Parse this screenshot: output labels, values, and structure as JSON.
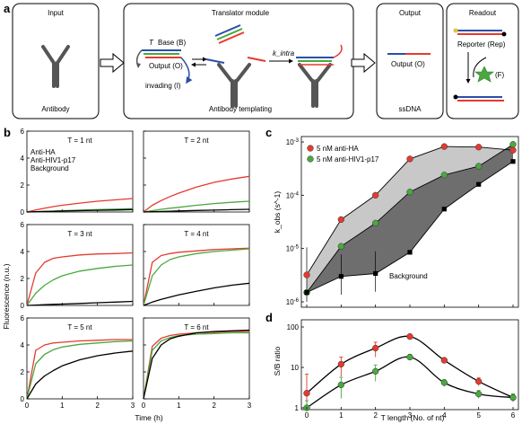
{
  "panel_labels": {
    "a": "a",
    "b": "b",
    "c": "c",
    "d": "d"
  },
  "schematic": {
    "input_title": "Input",
    "input_caption": "Antibody",
    "translator_title": "Translator module",
    "translator_caption": "Antibody templating",
    "toehold_label": "T",
    "base_label": "Base (B)",
    "output_strand_label": "Output (O)",
    "invading_label": "invading (I)",
    "kintra_label": "k_intra",
    "output_title": "Output",
    "output_strand": "Output (O)",
    "output_caption": "ssDNA",
    "readout_title": "Readout",
    "reporter_label": "Reporter (Rep)",
    "fluor_label": "(F)"
  },
  "colors": {
    "anti_ha": "#e53a2f",
    "anti_hiv": "#4aa83f",
    "background": "#000000",
    "shade_light": "#c8c8c8",
    "shade_dark": "#6e6e6e"
  },
  "chart_data": [
    {
      "type": "line",
      "panel": "b",
      "ylabel": "Fluorescence (n.u.)",
      "xlabel": "Time (h)",
      "xlim": [
        0,
        3
      ],
      "ylim": [
        0,
        6
      ],
      "x_ticks": [
        "0",
        "1",
        "2",
        "3"
      ],
      "y_ticks": [
        "0",
        "2",
        "4",
        "6"
      ],
      "legend": [
        "Anti-HA",
        "Anti-HIV1-p17",
        "Background"
      ],
      "x": [
        0,
        0.25,
        0.5,
        0.75,
        1,
        1.5,
        2,
        2.5,
        3
      ],
      "subplots": [
        {
          "title": "T = 1 nt",
          "series": [
            {
              "name": "Anti-HA",
              "values": [
                0,
                0.15,
                0.28,
                0.4,
                0.5,
                0.66,
                0.8,
                0.9,
                1.0
              ]
            },
            {
              "name": "Anti-HIV1-p17",
              "values": [
                0,
                0.03,
                0.05,
                0.07,
                0.1,
                0.14,
                0.18,
                0.21,
                0.25
              ]
            },
            {
              "name": "Background",
              "values": [
                0,
                0.02,
                0.04,
                0.05,
                0.07,
                0.1,
                0.13,
                0.15,
                0.18
              ]
            }
          ]
        },
        {
          "title": "T = 2 nt",
          "series": [
            {
              "name": "Anti-HA",
              "values": [
                0,
                0.5,
                0.85,
                1.15,
                1.4,
                1.85,
                2.2,
                2.45,
                2.65
              ]
            },
            {
              "name": "Anti-HIV1-p17",
              "values": [
                0,
                0.1,
                0.2,
                0.28,
                0.35,
                0.5,
                0.63,
                0.72,
                0.8
              ]
            },
            {
              "name": "Background",
              "values": [
                0,
                0.02,
                0.04,
                0.06,
                0.08,
                0.11,
                0.14,
                0.17,
                0.2
              ]
            }
          ]
        },
        {
          "title": "T = 3 nt",
          "series": [
            {
              "name": "Anti-HA",
              "values": [
                0,
                2.4,
                3.2,
                3.5,
                3.6,
                3.75,
                3.82,
                3.85,
                3.9
              ]
            },
            {
              "name": "Anti-HIV1-p17",
              "values": [
                0,
                0.9,
                1.5,
                1.9,
                2.2,
                2.55,
                2.75,
                2.9,
                3.0
              ]
            },
            {
              "name": "Background",
              "values": [
                0,
                0.03,
                0.06,
                0.08,
                0.1,
                0.15,
                0.2,
                0.25,
                0.3
              ]
            }
          ]
        },
        {
          "title": "T = 4 nt",
          "series": [
            {
              "name": "Anti-HA",
              "values": [
                0,
                3.2,
                3.7,
                3.85,
                3.95,
                4.05,
                4.15,
                4.2,
                4.25
              ]
            },
            {
              "name": "Anti-HIV1-p17",
              "values": [
                0,
                2.2,
                3.0,
                3.4,
                3.6,
                3.85,
                4.0,
                4.1,
                4.2
              ]
            },
            {
              "name": "Background",
              "values": [
                0,
                0.25,
                0.45,
                0.62,
                0.78,
                1.05,
                1.3,
                1.5,
                1.65
              ]
            }
          ]
        },
        {
          "title": "T = 5 nt",
          "series": [
            {
              "name": "Anti-HA",
              "values": [
                0,
                3.6,
                4.0,
                4.15,
                4.2,
                4.3,
                4.35,
                4.4,
                4.4
              ]
            },
            {
              "name": "Anti-HIV1-p17",
              "values": [
                0,
                2.6,
                3.3,
                3.65,
                3.85,
                4.05,
                4.15,
                4.25,
                4.3
              ]
            },
            {
              "name": "Background",
              "values": [
                0,
                1.1,
                1.7,
                2.1,
                2.45,
                2.9,
                3.2,
                3.4,
                3.55
              ]
            }
          ]
        },
        {
          "title": "T = 6 nt",
          "series": [
            {
              "name": "Anti-HA",
              "values": [
                0,
                3.9,
                4.5,
                4.7,
                4.8,
                4.9,
                4.95,
                5.0,
                5.0
              ]
            },
            {
              "name": "Anti-HIV1-p17",
              "values": [
                0,
                3.6,
                4.3,
                4.55,
                4.7,
                4.8,
                4.85,
                4.9,
                4.9
              ]
            },
            {
              "name": "Background",
              "values": [
                0,
                3.0,
                4.0,
                4.45,
                4.65,
                4.9,
                5.0,
                5.05,
                5.1
              ]
            }
          ]
        }
      ]
    },
    {
      "type": "scatter",
      "panel": "c",
      "ylabel": "k_obs (s^-1)",
      "yscale": "log",
      "ylim": [
        1e-06,
        0.001
      ],
      "xlim": [
        0,
        6
      ],
      "y_ticks": [
        "10^-6",
        "10^-5",
        "10^-4",
        "10^-3"
      ],
      "legend": [
        "5 nM anti-HA",
        "5 nM anti-HIV1-p17"
      ],
      "annotation": "Background",
      "x": [
        0,
        1,
        2,
        3,
        4,
        5,
        6
      ],
      "series": [
        {
          "name": "5 nM anti-HA",
          "values": [
            3.2e-06,
            3.5e-05,
            0.0001,
            0.00048,
            0.00082,
            0.0008,
            0.0007
          ]
        },
        {
          "name": "5 nM anti-HIV1-p17",
          "values": [
            1.5e-06,
            1.1e-05,
            3e-05,
            0.000115,
            0.00024,
            0.00035,
            0.0009
          ]
        },
        {
          "name": "Background",
          "values": [
            1.5e-06,
            3e-06,
            3.4e-06,
            8.5e-06,
            5.5e-05,
            0.00016,
            0.00043
          ]
        }
      ]
    },
    {
      "type": "scatter",
      "panel": "d",
      "ylabel": "S/B ratio",
      "xlabel": "T length (No. of nt)",
      "yscale": "log",
      "ylim": [
        1,
        100
      ],
      "xlim": [
        0,
        6
      ],
      "x_ticks": [
        "0",
        "1",
        "2",
        "3",
        "4",
        "5",
        "6"
      ],
      "y_ticks": [
        "1",
        "10",
        "100"
      ],
      "x": [
        0,
        1,
        2,
        3,
        4,
        5,
        6
      ],
      "series": [
        {
          "name": "5 nM anti-HA",
          "values": [
            2.3,
            12,
            30,
            58,
            15,
            4.5,
            1.8
          ]
        },
        {
          "name": "5 nM anti-HIV1-p17",
          "values": [
            1.0,
            3.7,
            8.0,
            18,
            4.2,
            2.2,
            1.8
          ]
        }
      ],
      "errors": [
        {
          "values": [
            4.5,
            6,
            12,
            8,
            2,
            1,
            0.4
          ]
        },
        {
          "values": [
            0.5,
            2.0,
            3.5,
            3,
            0.8,
            0.5,
            0.4
          ]
        }
      ]
    }
  ]
}
